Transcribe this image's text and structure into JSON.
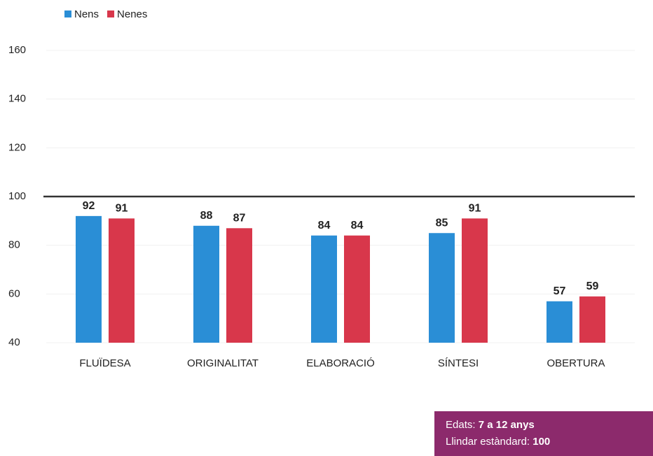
{
  "chart_data": {
    "type": "bar",
    "categories": [
      "FLUÏDESA",
      "ORIGINALITAT",
      "ELABORACIÓ",
      "SÍNTESI",
      "OBERTURA"
    ],
    "series": [
      {
        "name": "Nens",
        "color": "#2a8ed6",
        "values": [
          92,
          88,
          84,
          85,
          57
        ]
      },
      {
        "name": "Nenes",
        "color": "#d8374b",
        "values": [
          91,
          87,
          84,
          91,
          59
        ]
      }
    ],
    "ylim": [
      40,
      160
    ],
    "yticks": [
      40,
      60,
      80,
      100,
      120,
      140,
      160
    ],
    "grid": true,
    "threshold": 100,
    "annotation": {
      "ages_label": "Edats: ",
      "ages": "7 a 12 anys",
      "threshold_label": "Llindar estàndard: "
    },
    "legend": "top-left"
  }
}
